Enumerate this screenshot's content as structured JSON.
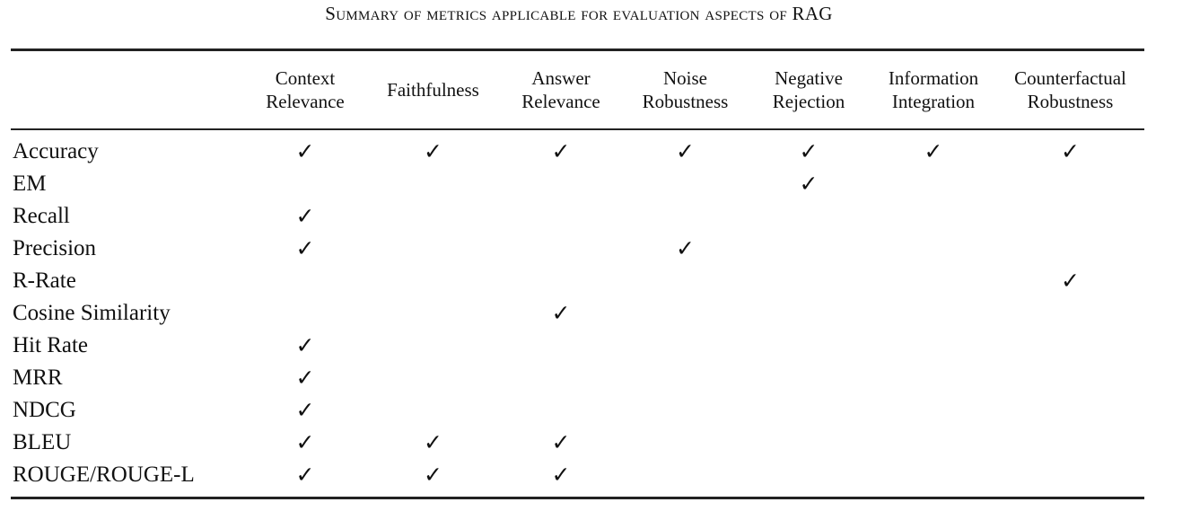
{
  "caption": "Summary of metrics applicable for evaluation aspects of RAG",
  "table": {
    "header": [
      "Context Relevance",
      "Faithfulness",
      "Answer Relevance",
      "Noise Robustness",
      "Negative Rejection",
      "Information Integration",
      "Counterfactual Robustness"
    ],
    "rows": [
      [
        "Accuracy",
        "✓",
        "✓",
        "✓",
        "✓",
        "✓",
        "✓",
        "✓"
      ],
      [
        "EM",
        null,
        null,
        null,
        null,
        "✓",
        null,
        null
      ],
      [
        "Recall",
        "✓",
        null,
        null,
        null,
        null,
        null,
        null
      ],
      [
        "Precision",
        "✓",
        null,
        null,
        "✓",
        null,
        null,
        null
      ],
      [
        "R-Rate",
        null,
        null,
        null,
        null,
        null,
        null,
        "✓"
      ],
      [
        "Cosine Similarity",
        null,
        null,
        "✓",
        null,
        null,
        null,
        null
      ],
      [
        "Hit Rate",
        "✓",
        null,
        null,
        null,
        null,
        null,
        null
      ],
      [
        "MRR",
        "✓",
        null,
        null,
        null,
        null,
        null,
        null
      ],
      [
        "NDCG",
        "✓",
        null,
        null,
        null,
        null,
        null,
        null
      ],
      [
        "BLEU",
        "✓",
        "✓",
        "✓",
        null,
        null,
        null,
        null
      ],
      [
        "ROUGE/ROUGE-L",
        "✓",
        "✓",
        "✓",
        null,
        null,
        null,
        null
      ]
    ]
  }
}
